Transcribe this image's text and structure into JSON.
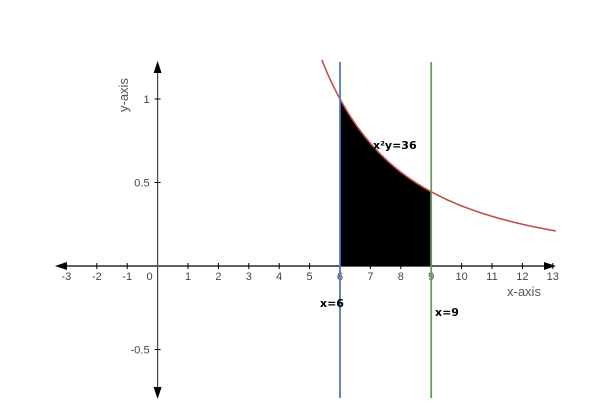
{
  "chart_data": {
    "type": "area",
    "title": "",
    "xlabel": "x-axis",
    "ylabel": "y-axis",
    "xlim": [
      -3,
      13
    ],
    "ylim": [
      -0.75,
      1.2
    ],
    "xticks": [
      -3,
      -2,
      -1,
      0,
      1,
      2,
      3,
      4,
      5,
      6,
      7,
      8,
      9,
      10,
      11,
      12,
      13
    ],
    "xtick_labels": [
      "-3",
      "-2",
      "-1",
      "0",
      "1",
      "2",
      "3",
      "4",
      "5",
      "6",
      "7",
      "8",
      "9",
      "10",
      "11",
      "12",
      "13"
    ],
    "yticks": [
      1,
      0.5,
      -0.5
    ],
    "ytick_labels": [
      "1",
      "0.5",
      "-0.5"
    ],
    "grid": false,
    "series": [
      {
        "name": "x²y=36",
        "function": "y = 36 / x^2",
        "x_range": [
          5.4,
          13.1
        ],
        "color": "#c0504d"
      },
      {
        "name": "x=6",
        "vertical_line": 6,
        "color": "#4a7ebb"
      },
      {
        "name": "x=9",
        "vertical_line": 9,
        "color": "#6a9a5b"
      }
    ],
    "shaded_region": {
      "from": 6,
      "to": 9,
      "under": "y = 36 / x^2",
      "color": "#000000"
    },
    "annotations": {
      "curve": "x²y=36",
      "line6": "x=6",
      "line9": "x=9"
    }
  }
}
